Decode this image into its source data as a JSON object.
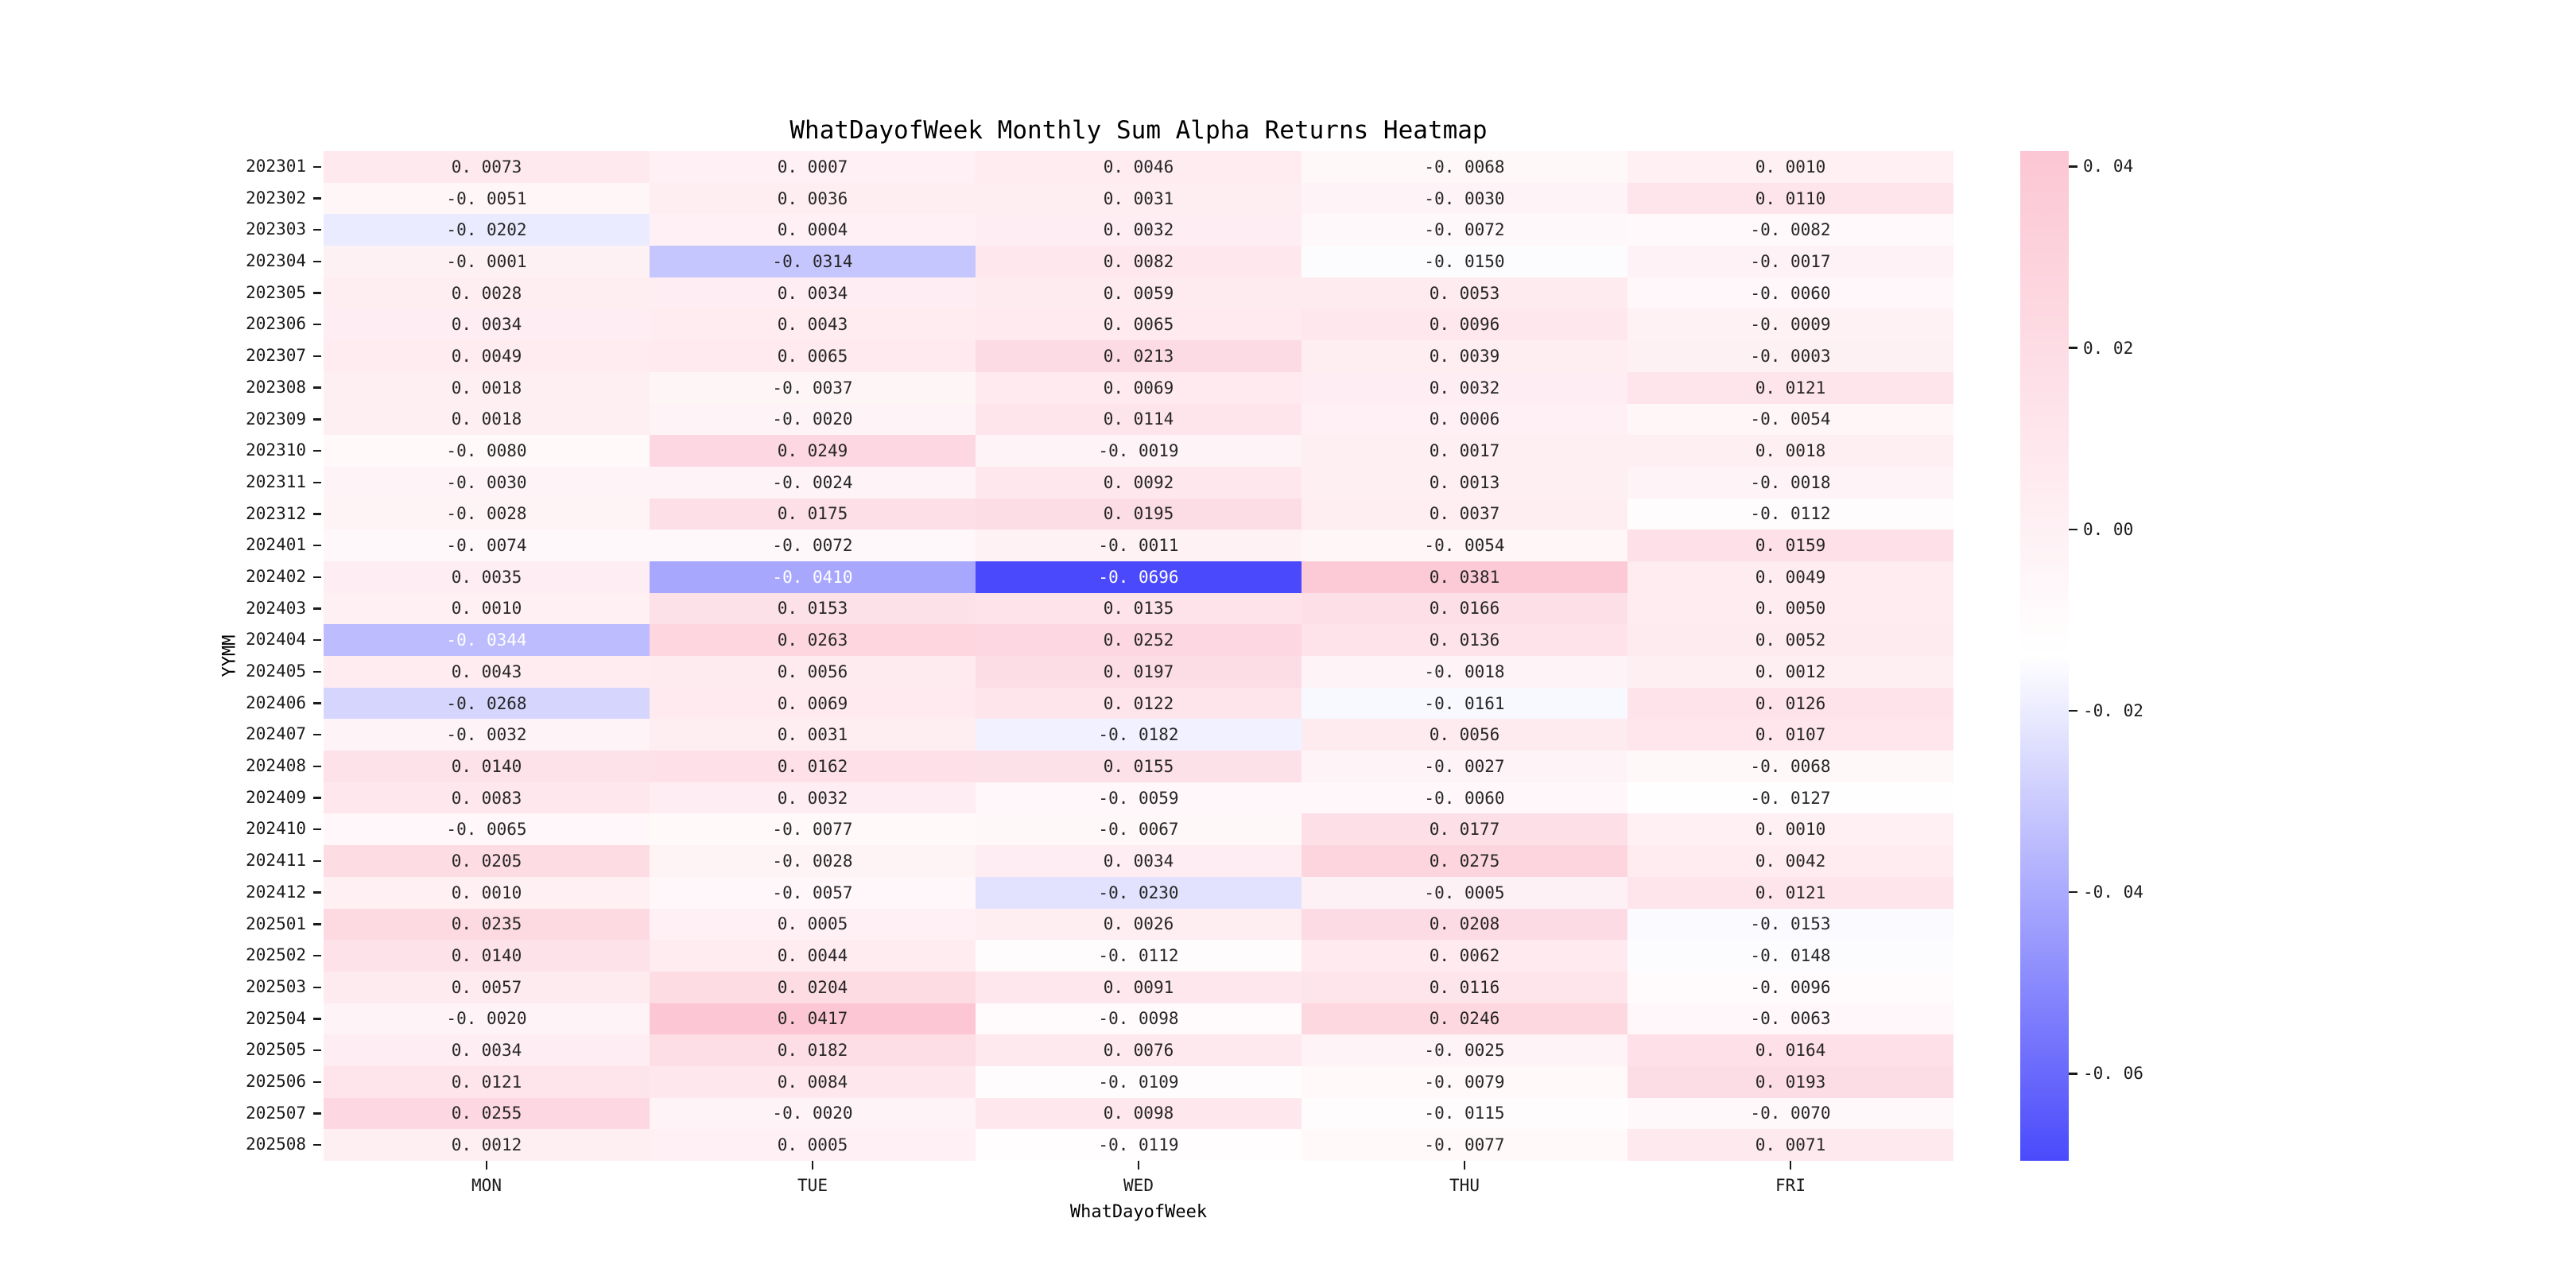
{
  "title": "WhatDayofWeek Monthly Sum Alpha Returns Heatmap",
  "x_axis_title": "WhatDayofWeek",
  "y_axis_title": "YYMM",
  "colors": {
    "colormap_min": "#4A4AFC",
    "colormap_mid": "#FFFFFF",
    "colormap_max": "#FCC6D4",
    "annotation_dark": "#262626",
    "annotation_light": "#FFFFFF",
    "axis_text": "#1A1A1A"
  },
  "chart_data": {
    "type": "heatmap",
    "title": "WhatDayofWeek Monthly Sum Alpha Returns Heatmap",
    "xlabel": "WhatDayofWeek",
    "ylabel": "YYMM",
    "x_categories": [
      "MON",
      "TUE",
      "WED",
      "THU",
      "FRI"
    ],
    "y_categories": [
      "202301",
      "202302",
      "202303",
      "202304",
      "202305",
      "202306",
      "202307",
      "202308",
      "202309",
      "202310",
      "202311",
      "202312",
      "202401",
      "202402",
      "202403",
      "202404",
      "202405",
      "202406",
      "202407",
      "202408",
      "202409",
      "202410",
      "202411",
      "202412",
      "202501",
      "202502",
      "202503",
      "202504",
      "202505",
      "202506",
      "202507",
      "202508"
    ],
    "rows": [
      [
        0.0073,
        0.0007,
        0.0046,
        -0.0068,
        0.001
      ],
      [
        -0.0051,
        0.0036,
        0.0031,
        -0.003,
        0.011
      ],
      [
        -0.0202,
        0.0004,
        0.0032,
        -0.0072,
        -0.0082
      ],
      [
        -0.0001,
        -0.0314,
        0.0082,
        -0.015,
        -0.0017
      ],
      [
        0.0028,
        0.0034,
        0.0059,
        0.0053,
        -0.006
      ],
      [
        0.0034,
        0.0043,
        0.0065,
        0.0096,
        -0.0009
      ],
      [
        0.0049,
        0.0065,
        0.0213,
        0.0039,
        -0.0003
      ],
      [
        0.0018,
        -0.0037,
        0.0069,
        0.0032,
        0.0121
      ],
      [
        0.0018,
        -0.002,
        0.0114,
        0.0006,
        -0.0054
      ],
      [
        -0.008,
        0.0249,
        -0.0019,
        0.0017,
        0.0018
      ],
      [
        -0.003,
        -0.0024,
        0.0092,
        0.0013,
        -0.0018
      ],
      [
        -0.0028,
        0.0175,
        0.0195,
        0.0037,
        -0.0112
      ],
      [
        -0.0074,
        -0.0072,
        -0.0011,
        -0.0054,
        0.0159
      ],
      [
        0.0035,
        -0.041,
        -0.0696,
        0.0381,
        0.0049
      ],
      [
        0.001,
        0.0153,
        0.0135,
        0.0166,
        0.005
      ],
      [
        -0.0344,
        0.0263,
        0.0252,
        0.0136,
        0.0052
      ],
      [
        0.0043,
        0.0056,
        0.0197,
        -0.0018,
        0.0012
      ],
      [
        -0.0268,
        0.0069,
        0.0122,
        -0.0161,
        0.0126
      ],
      [
        -0.0032,
        0.0031,
        -0.0182,
        0.0056,
        0.0107
      ],
      [
        0.014,
        0.0162,
        0.0155,
        -0.0027,
        -0.0068
      ],
      [
        0.0083,
        0.0032,
        -0.0059,
        -0.006,
        -0.0127
      ],
      [
        -0.0065,
        -0.0077,
        -0.0067,
        0.0177,
        0.001
      ],
      [
        0.0205,
        -0.0028,
        0.0034,
        0.0275,
        0.0042
      ],
      [
        0.001,
        -0.0057,
        -0.023,
        -0.0005,
        0.0121
      ],
      [
        0.0235,
        0.0005,
        0.0026,
        0.0208,
        -0.0153
      ],
      [
        0.014,
        0.0044,
        -0.0112,
        0.0062,
        -0.0148
      ],
      [
        0.0057,
        0.0204,
        0.0091,
        0.0116,
        -0.0096
      ],
      [
        -0.002,
        0.0417,
        -0.0098,
        0.0246,
        -0.0063
      ],
      [
        0.0034,
        0.0182,
        0.0076,
        -0.0025,
        0.0164
      ],
      [
        0.0121,
        0.0084,
        -0.0109,
        -0.0079,
        0.0193
      ],
      [
        0.0255,
        -0.002,
        0.0098,
        -0.0115,
        -0.007
      ],
      [
        0.0012,
        0.0005,
        -0.0119,
        -0.0077,
        0.0071
      ]
    ],
    "vmin": -0.0696,
    "vmax": 0.0417,
    "colorbar_ticks": [
      0.04,
      0.02,
      0.0,
      -0.02,
      -0.04,
      -0.06
    ],
    "annotations": true,
    "grid": false,
    "legend_position": "right"
  }
}
